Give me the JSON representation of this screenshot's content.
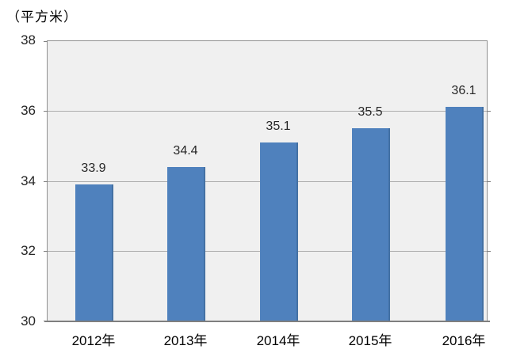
{
  "chart_data": {
    "type": "bar",
    "title": "（平方米）",
    "categories": [
      "2012年",
      "2013年",
      "2014年",
      "2015年",
      "2016年"
    ],
    "values": [
      33.9,
      34.4,
      35.1,
      35.5,
      36.1
    ],
    "data_labels": [
      "33.9",
      "34.4",
      "35.1",
      "35.5",
      "36.1"
    ],
    "xlabel": "",
    "ylabel": "（平方米）",
    "ylim": [
      30,
      38
    ],
    "y_ticks": [
      "30",
      "32",
      "34",
      "36",
      "38"
    ],
    "y_tick_values": [
      30,
      32,
      34,
      36,
      38
    ],
    "grid": true,
    "legend": false,
    "bar_color": "#4f81bd",
    "bar_edge_color": "#4471a4",
    "plot_bg_color": "#f0f0f0",
    "gridline_color": "#adadad",
    "axis_color": "#7f7f7f"
  }
}
